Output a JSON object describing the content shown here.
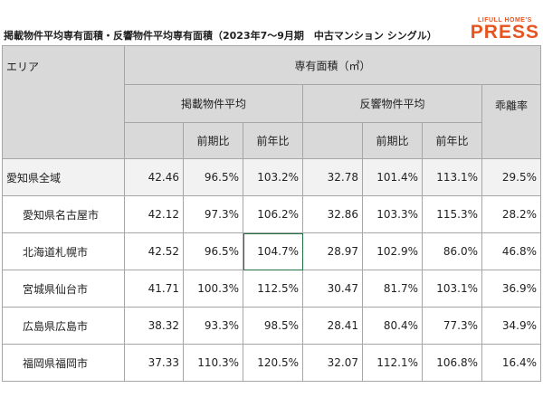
{
  "title": "掲載物件平均専有面積・反響物件平均専有面積（2023年7～9月期　中古マンション シングル）",
  "logo": {
    "top": "LIFULL HOME'S",
    "main": "PRESS"
  },
  "table": {
    "header": {
      "area": "エリア",
      "group": "専有面積（㎡）",
      "listed": "掲載物件平均",
      "response": "反響物件平均",
      "divergence": "乖離率",
      "sub": [
        "前期比",
        "前年比",
        "前期比",
        "前年比"
      ]
    },
    "rows": [
      [
        "愛知県全域",
        "42.46",
        "96.5%",
        "103.2%",
        "32.78",
        "101.4%",
        "113.1%",
        "29.5%"
      ],
      [
        "愛知県名古屋市",
        "42.12",
        "97.3%",
        "106.2%",
        "32.86",
        "103.3%",
        "115.3%",
        "28.2%"
      ],
      [
        "北海道札幌市",
        "42.52",
        "96.5%",
        "104.7%",
        "28.97",
        "102.9%",
        "86.0%",
        "46.8%"
      ],
      [
        "宮城県仙台市",
        "41.71",
        "100.3%",
        "112.5%",
        "30.47",
        "81.7%",
        "103.1%",
        "36.9%"
      ],
      [
        "広島県広島市",
        "38.32",
        "93.3%",
        "98.5%",
        "28.41",
        "80.4%",
        "77.3%",
        "34.9%"
      ],
      [
        "福岡県福岡市",
        "37.33",
        "110.3%",
        "120.5%",
        "32.07",
        "112.1%",
        "106.8%",
        "16.4%"
      ]
    ]
  }
}
